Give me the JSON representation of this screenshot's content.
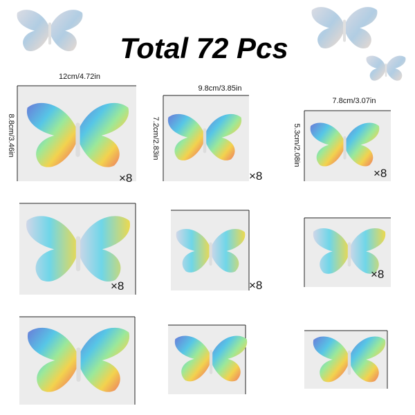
{
  "title": "Total 72 Pcs",
  "sizes": [
    {
      "width": "12cm/4.72in",
      "height": "8.8cm/3.46in"
    },
    {
      "width": "9.8cm/3.85in",
      "height": "7.2cm/2.83in"
    },
    {
      "width": "7.8cm/3.07in",
      "height": "5.3cm/2.08in"
    }
  ],
  "quantities": [
    [
      "×8",
      "×8",
      "×8"
    ],
    [
      "×8",
      "×8",
      "×8"
    ]
  ]
}
